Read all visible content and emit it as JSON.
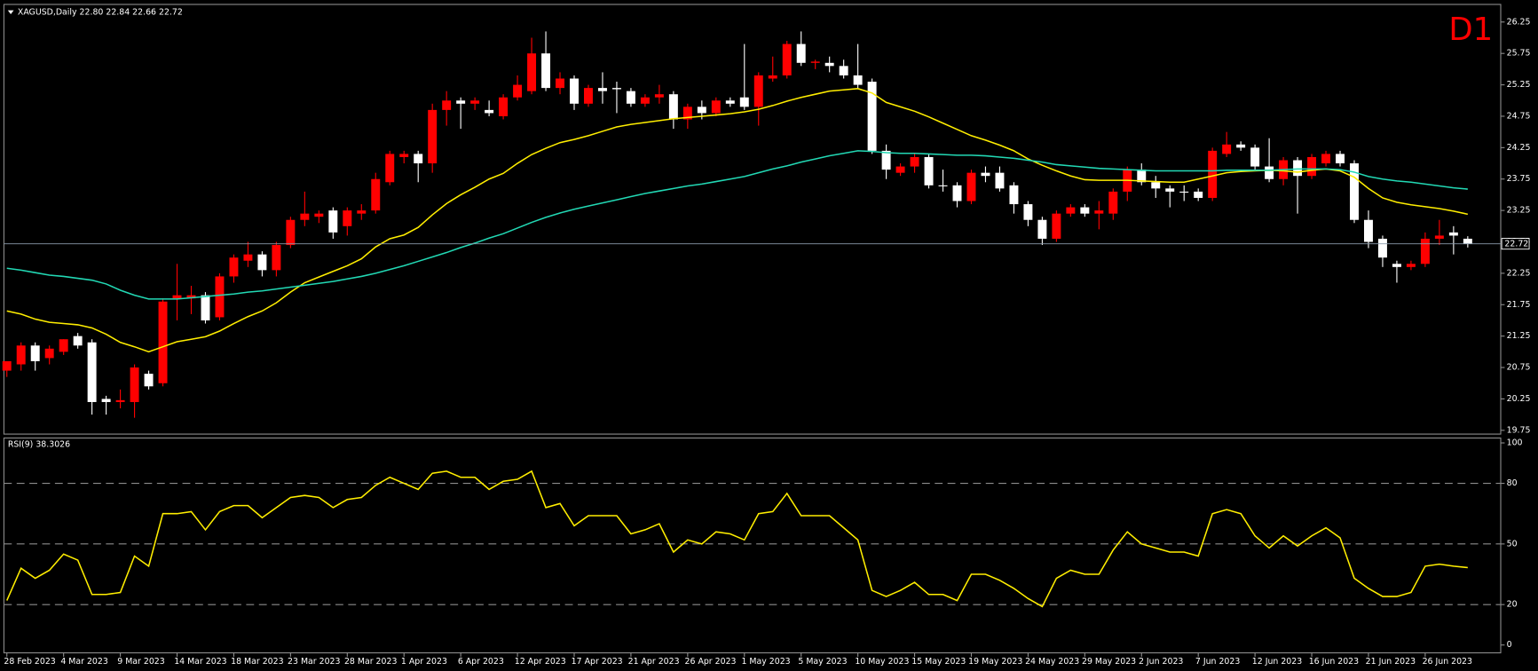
{
  "chart_data": [
    {
      "type": "candlestick",
      "title": "XAGUSD,Daily  22.80 22.84 22.66 22.72",
      "badge": "D1",
      "categories": [
        "28 Feb 2023",
        null,
        null,
        null,
        "4 Mar 2023",
        null,
        null,
        null,
        "9 Mar 2023",
        null,
        null,
        null,
        "14 Mar 2023",
        null,
        null,
        null,
        "18 Mar 2023",
        null,
        null,
        null,
        "23 Mar 2023",
        null,
        null,
        null,
        "28 Mar 2023",
        null,
        null,
        null,
        "1 Apr 2023",
        null,
        null,
        null,
        "6 Apr 2023",
        null,
        null,
        null,
        "12 Apr 2023",
        null,
        null,
        null,
        "17 Apr 2023",
        null,
        null,
        null,
        "21 Apr 2023",
        null,
        null,
        null,
        "26 Apr 2023",
        null,
        null,
        null,
        "1 May 2023",
        null,
        null,
        null,
        "5 May 2023",
        null,
        null,
        null,
        "10 May 2023",
        null,
        null,
        null,
        "15 May 2023",
        null,
        null,
        null,
        "19 May 2023",
        null,
        null,
        null,
        "24 May 2023",
        null,
        null,
        null,
        "29 May 2023",
        null,
        null,
        null,
        "2 Jun 2023",
        null,
        null,
        null,
        "7 Jun 2023",
        null,
        null,
        null,
        "12 Jun 2023",
        null,
        null,
        null,
        "16 Jun 2023",
        null,
        null,
        null,
        "21 Jun 2023",
        null,
        null,
        null,
        "26 Jun 2023",
        null,
        null,
        null
      ],
      "open": [
        20.7,
        20.8,
        21.1,
        20.9,
        21,
        21.25,
        21.15,
        20.25,
        20.2,
        20.2,
        20.65,
        20.5,
        21.85,
        21.85,
        21.9,
        21.55,
        22.2,
        22.45,
        22.55,
        22.3,
        22.7,
        23.1,
        23.15,
        23.25,
        23,
        23.2,
        23.25,
        23.7,
        24.1,
        24.15,
        24,
        24.85,
        25,
        24.95,
        24.85,
        24.75,
        25.05,
        25.15,
        25.75,
        25.2,
        25.35,
        24.95,
        25.2,
        25.2,
        25.15,
        24.95,
        25.05,
        25.1,
        24.7,
        24.9,
        24.8,
        25,
        25.05,
        24.9,
        25.35,
        25.4,
        25.9,
        25.6,
        25.6,
        25.55,
        25.4,
        25.3,
        24.2,
        23.85,
        23.95,
        24.1,
        23.65,
        23.65,
        23.4,
        23.85,
        23.85,
        23.65,
        23.35,
        23.1,
        22.8,
        23.2,
        23.3,
        23.2,
        23.2,
        23.55,
        23.9,
        23.7,
        23.6,
        23.55,
        23.55,
        23.45,
        24.15,
        24.3,
        24.25,
        23.95,
        23.75,
        24.05,
        23.8,
        24,
        24.15,
        24,
        23.1,
        22.8,
        22.4,
        22.35,
        22.4,
        22.8,
        22.9,
        22.8
      ],
      "high": [
        20.85,
        21.15,
        21.15,
        21.1,
        21.2,
        21.3,
        21.2,
        20.3,
        20.4,
        20.8,
        20.7,
        21.85,
        22.4,
        22.05,
        21.95,
        22.25,
        22.55,
        22.75,
        22.6,
        22.75,
        23.15,
        23.55,
        23.25,
        23.3,
        23.3,
        23.35,
        23.85,
        24.2,
        24.2,
        24.2,
        24.95,
        25.15,
        25.05,
        25.05,
        25,
        25.1,
        25.4,
        26,
        26.1,
        25.45,
        25.4,
        25.25,
        25.45,
        25.3,
        25.2,
        25.1,
        25.25,
        25.15,
        24.95,
        25,
        25.05,
        25.05,
        25.9,
        25.45,
        25.7,
        25.95,
        26.1,
        25.65,
        25.7,
        25.65,
        25.9,
        25.35,
        24.3,
        24,
        24.15,
        24.15,
        23.9,
        23.7,
        23.9,
        23.95,
        23.95,
        23.7,
        23.4,
        23.15,
        23.25,
        23.35,
        23.35,
        23.4,
        23.6,
        23.95,
        24,
        23.8,
        23.65,
        23.65,
        23.6,
        24.25,
        24.5,
        24.35,
        24.3,
        24.4,
        24.1,
        24.1,
        24.15,
        24.2,
        24.2,
        24.05,
        23.25,
        22.85,
        22.45,
        22.45,
        22.9,
        23.1,
        23,
        22.84
      ],
      "low": [
        20.6,
        20.7,
        20.7,
        20.8,
        20.95,
        21.05,
        20,
        20,
        20.1,
        19.95,
        20.4,
        20.45,
        21.5,
        21.6,
        21.45,
        21.5,
        22.1,
        22.35,
        22.2,
        22.2,
        22.65,
        23,
        23.05,
        22.8,
        22.85,
        23.1,
        23.2,
        23.65,
        24,
        23.7,
        23.85,
        24.6,
        24.55,
        24.85,
        24.75,
        24.7,
        25,
        25.1,
        25.15,
        25.1,
        24.85,
        24.9,
        24.95,
        24.8,
        24.9,
        24.9,
        24.95,
        24.55,
        24.55,
        24.7,
        24.75,
        24.9,
        24.85,
        24.6,
        25.3,
        25.35,
        25.55,
        25.5,
        25.45,
        25.35,
        25.2,
        24.15,
        23.75,
        23.8,
        23.85,
        23.6,
        23.55,
        23.3,
        23.35,
        23.7,
        23.55,
        23.2,
        23,
        22.7,
        22.75,
        23.15,
        23.15,
        22.95,
        23.1,
        23.4,
        23.65,
        23.45,
        23.3,
        23.4,
        23.4,
        23.4,
        24.1,
        24.2,
        23.9,
        23.7,
        23.65,
        23.2,
        23.75,
        23.95,
        23.95,
        23.05,
        22.65,
        22.35,
        22.1,
        22.3,
        22.35,
        22.7,
        22.55,
        22.66
      ],
      "close": [
        20.85,
        21.1,
        20.85,
        21.05,
        21.2,
        21.1,
        20.2,
        20.2,
        20.23,
        20.75,
        20.45,
        21.8,
        21.9,
        21.9,
        21.5,
        22.2,
        22.5,
        22.55,
        22.3,
        22.7,
        23.1,
        23.2,
        23.2,
        22.9,
        23.25,
        23.25,
        23.75,
        24.15,
        24.15,
        24,
        24.85,
        25,
        24.95,
        25,
        24.8,
        25.05,
        25.25,
        25.75,
        25.2,
        25.35,
        24.95,
        25.2,
        25.15,
        25.18,
        24.95,
        25.05,
        25.1,
        24.7,
        24.9,
        24.8,
        25,
        24.95,
        24.9,
        25.4,
        25.4,
        25.9,
        25.6,
        25.62,
        25.55,
        25.4,
        25.25,
        24.2,
        23.9,
        23.95,
        24.1,
        23.65,
        23.64,
        23.4,
        23.85,
        23.8,
        23.6,
        23.35,
        23.1,
        22.8,
        23.2,
        23.3,
        23.2,
        23.25,
        23.55,
        23.9,
        23.7,
        23.6,
        23.55,
        23.54,
        23.45,
        24.2,
        24.3,
        24.25,
        23.95,
        23.75,
        24.05,
        23.8,
        24.1,
        24.15,
        24,
        23.1,
        22.75,
        22.5,
        22.35,
        22.4,
        22.8,
        22.85,
        22.85,
        22.72
      ],
      "up_color": "#ff0000",
      "down_color": "#ffffff",
      "price_line_color": "#8a9aaa",
      "series": [
        {
          "color": "#ffee00",
          "values": [
            21.65,
            21.6,
            21.52,
            21.47,
            21.45,
            21.43,
            21.38,
            21.28,
            21.15,
            21.08,
            21,
            21.08,
            21.16,
            21.2,
            21.24,
            21.33,
            21.45,
            21.56,
            21.65,
            21.78,
            21.95,
            22.1,
            22.19,
            22.28,
            22.37,
            22.48,
            22.67,
            22.8,
            22.86,
            22.98,
            23.18,
            23.36,
            23.5,
            23.62,
            23.75,
            23.84,
            24,
            24.14,
            24.24,
            24.33,
            24.38,
            24.44,
            24.51,
            24.58,
            24.62,
            24.65,
            24.68,
            24.71,
            24.73,
            24.75,
            24.77,
            24.79,
            24.82,
            24.86,
            24.92,
            24.99,
            25.05,
            25.1,
            25.15,
            25.17,
            25.19,
            25.12,
            24.97,
            24.9,
            24.83,
            24.74,
            24.64,
            24.54,
            24.44,
            24.37,
            24.29,
            24.2,
            24.07,
            23.97,
            23.88,
            23.8,
            23.74,
            23.73,
            23.73,
            23.73,
            23.72,
            23.71,
            23.7,
            23.7,
            23.75,
            23.8,
            23.85,
            23.87,
            23.88,
            23.89,
            23.88,
            23.86,
            23.89,
            23.91,
            23.88,
            23.78,
            23.6,
            23.45,
            23.38,
            23.34,
            23.31,
            23.28,
            23.24,
            23.19
          ]
        },
        {
          "color": "#22d8b4",
          "values": [
            22.33,
            22.3,
            22.26,
            22.22,
            22.2,
            22.17,
            22.14,
            22.08,
            21.98,
            21.9,
            21.84,
            21.84,
            21.84,
            21.86,
            21.88,
            21.9,
            21.92,
            21.95,
            21.97,
            22,
            22.03,
            22.06,
            22.09,
            22.12,
            22.16,
            22.2,
            22.25,
            22.31,
            22.37,
            22.44,
            22.51,
            22.58,
            22.66,
            22.73,
            22.81,
            22.88,
            22.97,
            23.06,
            23.14,
            23.21,
            23.27,
            23.32,
            23.37,
            23.42,
            23.47,
            23.52,
            23.56,
            23.6,
            23.64,
            23.67,
            23.71,
            23.75,
            23.79,
            23.85,
            23.91,
            23.96,
            24.02,
            24.07,
            24.12,
            24.16,
            24.2,
            24.19,
            24.17,
            24.16,
            24.16,
            24.15,
            24.14,
            24.13,
            24.13,
            24.12,
            24.1,
            24.08,
            24.05,
            24.02,
            23.98,
            23.96,
            23.94,
            23.92,
            23.91,
            23.9,
            23.89,
            23.88,
            23.88,
            23.88,
            23.88,
            23.88,
            23.89,
            23.89,
            23.89,
            23.89,
            23.9,
            23.91,
            23.91,
            23.91,
            23.9,
            23.86,
            23.79,
            23.75,
            23.72,
            23.7,
            23.67,
            23.64,
            23.61,
            23.59
          ]
        }
      ],
      "ylim": [
        19.69,
        26.53
      ],
      "yticks": [
        19.75,
        20.25,
        20.75,
        21.25,
        21.75,
        22.25,
        22.75,
        23.25,
        23.75,
        24.25,
        24.75,
        25.25,
        25.75,
        26.25
      ]
    },
    {
      "type": "line",
      "title": "RSI(9) 38.3026",
      "series": [
        {
          "color": "#ffee00",
          "values": [
            22,
            38,
            33,
            37,
            45,
            42,
            25,
            25,
            26,
            44,
            39,
            65,
            65,
            66,
            57,
            66,
            69,
            69,
            63,
            68,
            73,
            74,
            73,
            68,
            72,
            73,
            79,
            83,
            80,
            77,
            85,
            86,
            83,
            83,
            77,
            81,
            82,
            86,
            68,
            70,
            59,
            64,
            64,
            64,
            55,
            57,
            60,
            46,
            52,
            50,
            56,
            55,
            52,
            65,
            66,
            75,
            64,
            64,
            64,
            58,
            52,
            27,
            24,
            27,
            31,
            25,
            25,
            22,
            35,
            35,
            32,
            28,
            23,
            19,
            33,
            37,
            35,
            35,
            47,
            56,
            50,
            48,
            46,
            46,
            44,
            65,
            67,
            65,
            54,
            48,
            54,
            49,
            54,
            58,
            53,
            33,
            28,
            24,
            24,
            26,
            39,
            40,
            39,
            38.3026
          ]
        }
      ],
      "ylim": [
        0,
        100
      ],
      "yticks": [
        0,
        20,
        50,
        80,
        100
      ],
      "grid": "dashed"
    }
  ]
}
